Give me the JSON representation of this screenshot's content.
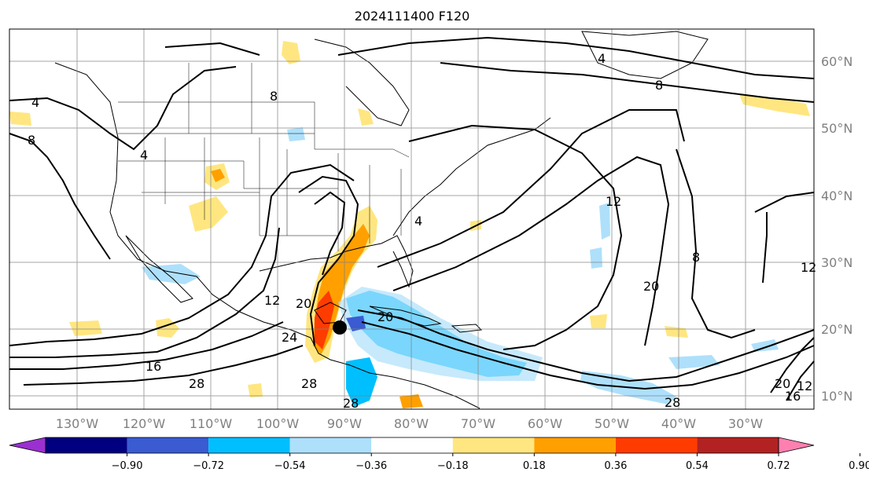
{
  "title": "2024111400 F120",
  "lat_labels": [
    "60°N",
    "50°N",
    "40°N",
    "30°N",
    "20°N",
    "10°N"
  ],
  "lon_labels": [
    "130°W",
    "120°W",
    "110°W",
    "100°W",
    "90°W",
    "80°W",
    "70°W",
    "60°W",
    "50°W",
    "40°W",
    "30°W"
  ],
  "colorbar": {
    "ticks": [
      "−0.90",
      "−0.72",
      "−0.54",
      "−0.36",
      "−0.18",
      "0.18",
      "0.36",
      "0.54",
      "0.72",
      "0.90"
    ],
    "colors": [
      "#9b30d0",
      "#000080",
      "#3a5bd1",
      "#00bfff",
      "#aee0fb",
      "#ffffff",
      "#ffe680",
      "#ffa000",
      "#ff3c00",
      "#b22222",
      "#ff80b0"
    ]
  },
  "contour_labels": [
    "4",
    "8",
    "4",
    "4",
    "8",
    "4",
    "8",
    "12",
    "8",
    "12",
    "20",
    "20",
    "16",
    "28",
    "12",
    "20",
    "24",
    "28",
    "28",
    "28",
    "20",
    "16",
    "12"
  ],
  "colors": {
    "land_border": "#000000",
    "grid": "#808080"
  }
}
